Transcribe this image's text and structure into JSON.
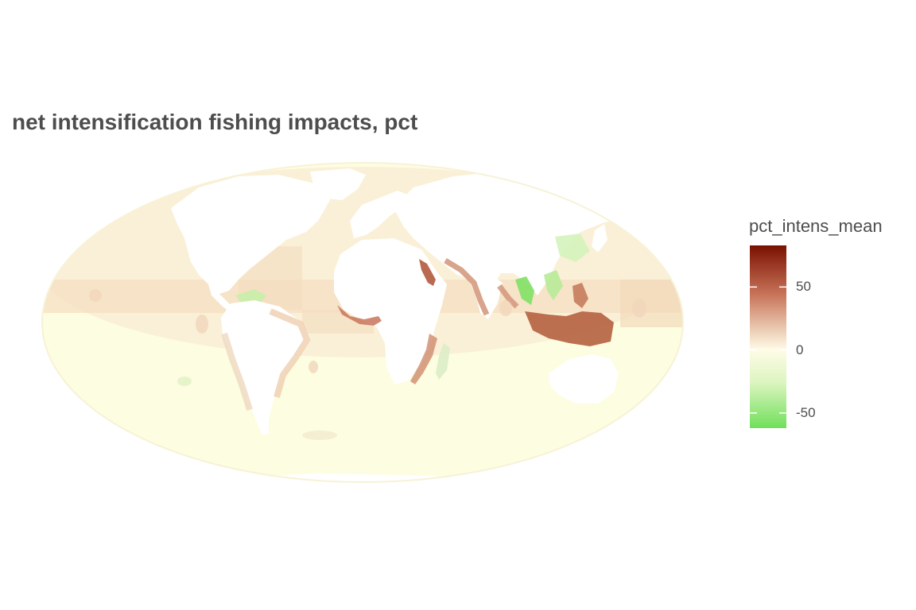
{
  "title": "net intensification fishing impacts, pct",
  "legend": {
    "title": "pct_intens_mean",
    "ticks": [
      "50",
      "0",
      "-50"
    ],
    "tick_values": [
      50,
      0,
      -50
    ],
    "range": [
      -62,
      83
    ],
    "colors": {
      "high": "#7a1000",
      "upper_mid": "#c8745a",
      "mid_warm": "#ecd0b8",
      "zero": "#fffbe8",
      "low_mid": "#dcf5c0",
      "low": "#70df5a"
    }
  },
  "map": {
    "projection": "mollweide",
    "ocean_base_color": "#fdfde2",
    "land_color": "#ffffff"
  }
}
